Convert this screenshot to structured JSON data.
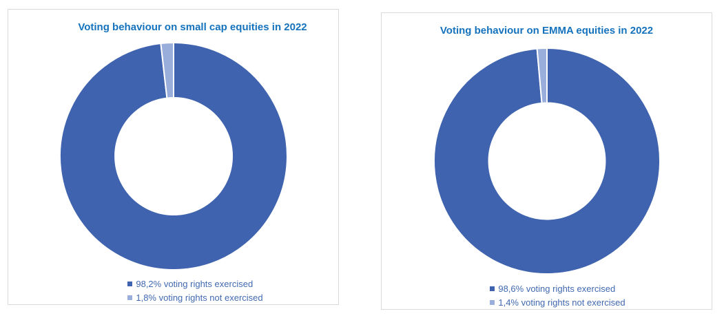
{
  "page": {
    "background_color": "#FFFFFF",
    "panel_border_color": "#D9D9D9"
  },
  "chart_data": [
    {
      "type": "pie",
      "subtype": "donut",
      "title": "Voting behaviour on small cap equities in 2022",
      "title_color": "#1572BD",
      "legend_position": "bottom",
      "legend_text_color": "#4169B1",
      "donut_hole_ratio": 0.515,
      "start_angle_deg": 0,
      "direction": "clockwise",
      "slices": [
        {
          "label": "98,2% voting rights exercised",
          "value": 98.2,
          "color": "#3F63AE"
        },
        {
          "label": "1,8% voting rights not exercised",
          "value": 1.8,
          "color": "#9AAEDB"
        }
      ]
    },
    {
      "type": "pie",
      "subtype": "donut",
      "title": "Voting behaviour on EMMA equities in 2022",
      "title_color": "#1572BD",
      "legend_position": "bottom",
      "legend_text_color": "#4169B1",
      "donut_hole_ratio": 0.515,
      "start_angle_deg": 0,
      "direction": "clockwise",
      "slices": [
        {
          "label": "98,6% voting rights exercised",
          "value": 98.6,
          "color": "#3F63AE"
        },
        {
          "label": "1,4% voting rights not exercised",
          "value": 1.4,
          "color": "#9AAEDB"
        }
      ]
    }
  ]
}
